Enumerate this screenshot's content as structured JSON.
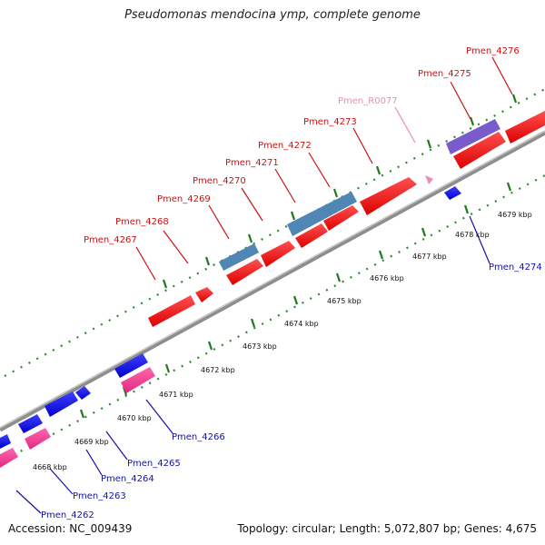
{
  "title": "Pseudomonas mendocina ymp, complete genome",
  "accession": "Accession: NC_009439",
  "summary": "Topology: circular; Length: 5,072,807 bp; Genes: 4,675",
  "colors": {
    "forward_gene": "#ee1111",
    "forward_label": "#cc1111",
    "reverse_gene": "#1111ee",
    "reverse_label": "#1111aa",
    "pseudo_gene": "#e8358c",
    "rna_label": "#f08ab8",
    "steel": "#4f86b4",
    "purple": "#7a5bcc",
    "tick": "#2a8a2a",
    "backbone": "#999999"
  },
  "scale_labels": [
    "4668 kbp",
    "4669 kbp",
    "4670 kbp",
    "4671 kbp",
    "4672 kbp",
    "4673 kbp",
    "4674 kbp",
    "4675 kbp",
    "4676 kbp",
    "4677 kbp",
    "4678 kbp",
    "4679 kbp"
  ],
  "forward_labels": [
    "Pmen_4267",
    "Pmen_4268",
    "Pmen_4269",
    "Pmen_4270",
    "Pmen_4271",
    "Pmen_4272",
    "Pmen_4273",
    "Pmen_R0077",
    "Pmen_4275",
    "Pmen_4276"
  ],
  "reverse_labels": [
    "Pmen_4262",
    "Pmen_4263",
    "Pmen_4264",
    "Pmen_4265",
    "Pmen_4266",
    "Pmen_4274"
  ]
}
